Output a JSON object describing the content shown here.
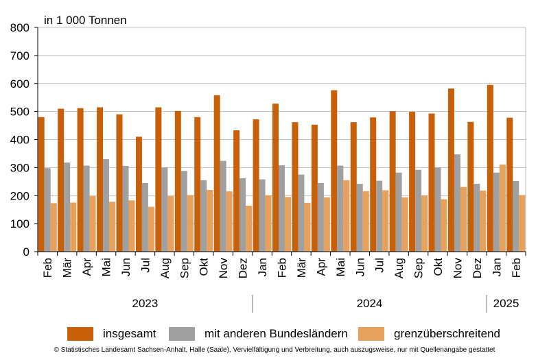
{
  "chart_data": {
    "type": "bar",
    "unit_label": "in 1 000 Tonnen",
    "ylim": [
      0,
      800
    ],
    "y_ticks": [
      0,
      100,
      200,
      300,
      400,
      500,
      600,
      700,
      800
    ],
    "grid": true,
    "legend_position": "bottom",
    "categories": [
      "Feb",
      "Mär",
      "Apr",
      "Mai",
      "Jun",
      "Jul",
      "Aug",
      "Sep",
      "Okt",
      "Nov",
      "Dez",
      "Jan",
      "Feb",
      "Mär",
      "Apr",
      "Mai",
      "Jun",
      "Jul",
      "Aug",
      "Sep",
      "Okt",
      "Nov",
      "Dez",
      "Jan",
      "Feb"
    ],
    "year_groups": [
      {
        "label": "2023",
        "start": 0,
        "end": 10
      },
      {
        "label": "2024",
        "start": 11,
        "end": 22
      },
      {
        "label": "2025",
        "start": 23,
        "end": 24
      }
    ],
    "series": [
      {
        "name": "insgesamt",
        "color": "#c8600a",
        "values": [
          480,
          510,
          512,
          515,
          490,
          410,
          515,
          502,
          480,
          558,
          433,
          472,
          528,
          462,
          453,
          576,
          462,
          479,
          501,
          499,
          493,
          582,
          463,
          595,
          478
        ]
      },
      {
        "name": "mit anderen Bundesländern",
        "color": "#a0a0a0",
        "values": [
          298,
          318,
          307,
          330,
          306,
          245,
          300,
          288,
          255,
          324,
          262,
          258,
          308,
          275,
          245,
          307,
          242,
          253,
          282,
          292,
          300,
          347,
          242,
          282,
          252
        ]
      },
      {
        "name": "grenzüberschreitend",
        "color": "#e6a15c",
        "values": [
          173,
          175,
          198,
          178,
          183,
          160,
          198,
          202,
          220,
          215,
          164,
          201,
          195,
          174,
          194,
          255,
          216,
          219,
          194,
          200,
          187,
          231,
          218,
          311,
          202
        ]
      }
    ]
  },
  "footer": {
    "source": "© Statistisches Landesamt Sachsen-Anhalt, Halle (Saale), Vervielfältigung und Verbreitung, auch auszugsweise, nur mit Quellenangabe gestattet"
  }
}
